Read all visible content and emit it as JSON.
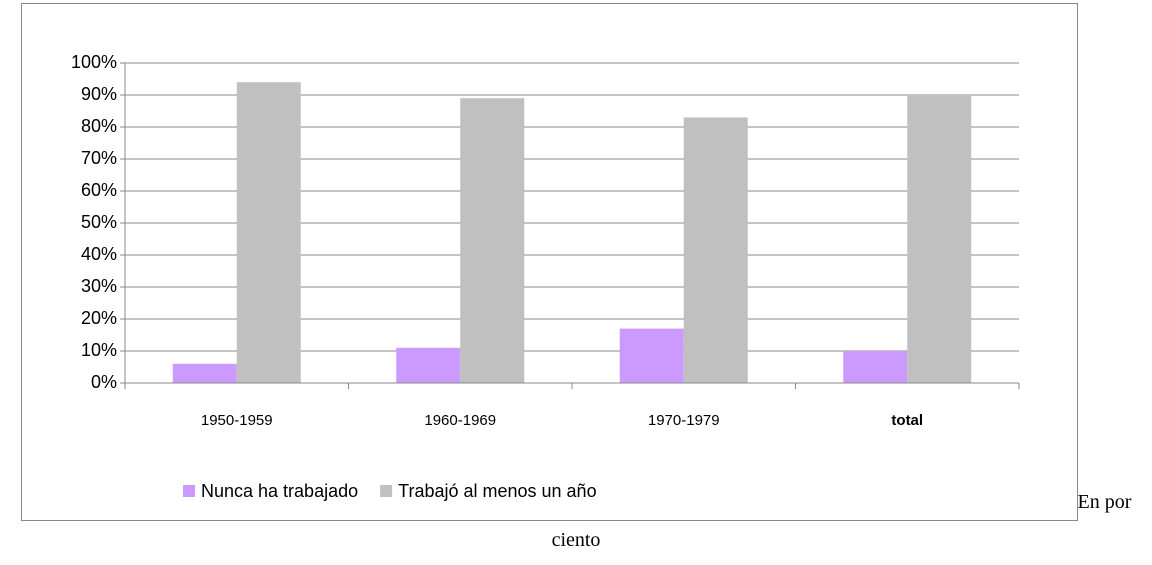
{
  "chart_data": {
    "type": "bar",
    "categories": [
      "1950-1959",
      "1960-1969",
      "1970-1979",
      "total"
    ],
    "series": [
      {
        "name": "Nunca ha trabajado",
        "color": "#cc99ff",
        "values": [
          6,
          11,
          17,
          10
        ]
      },
      {
        "name": "Trabajó al menos un año",
        "color": "#c0c0c0",
        "values": [
          94,
          89,
          83,
          90
        ]
      }
    ],
    "ylim": [
      0,
      100
    ],
    "yticks": [
      {
        "value": 0,
        "label": "0%"
      },
      {
        "value": 10,
        "label": "10%"
      },
      {
        "value": 20,
        "label": "20%"
      },
      {
        "value": 30,
        "label": "30%"
      },
      {
        "value": 40,
        "label": "40%"
      },
      {
        "value": 50,
        "label": "50%"
      },
      {
        "value": 60,
        "label": "60%"
      },
      {
        "value": 70,
        "label": "70%"
      },
      {
        "value": 80,
        "label": "80%"
      },
      {
        "value": 90,
        "label": "90%"
      },
      {
        "value": 100,
        "label": "100%"
      }
    ],
    "grid": true,
    "legend": "bottom",
    "caption": "En por ciento"
  }
}
